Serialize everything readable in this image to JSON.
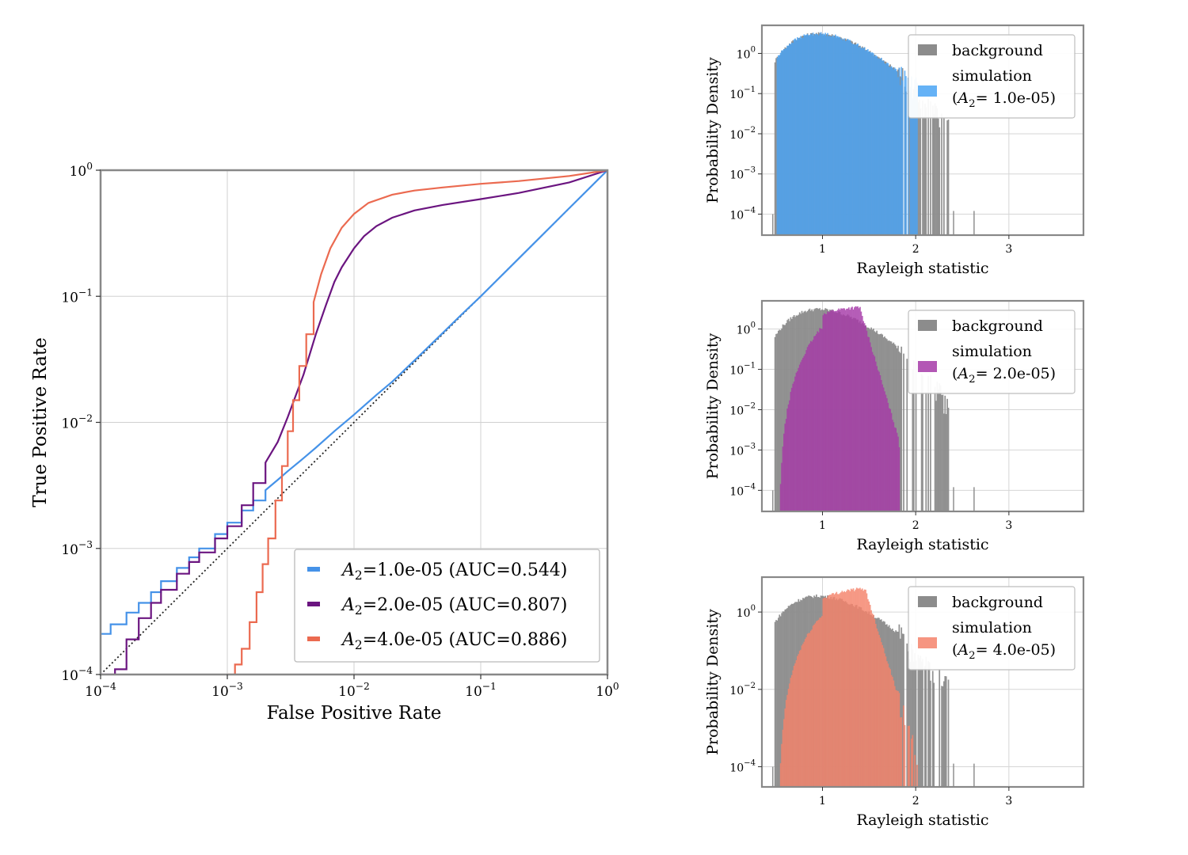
{
  "chart_data": [
    {
      "type": "line",
      "title": "",
      "xlabel": "False Positive Rate",
      "ylabel": "True Positive Rate",
      "xscale": "log",
      "yscale": "log",
      "xlim": [
        0.0001,
        1
      ],
      "ylim": [
        0.0001,
        1
      ],
      "grid": true,
      "legend_position": "lower-right",
      "x_ticks": [
        {
          "base": "10",
          "exp": "−4"
        },
        {
          "base": "10",
          "exp": "−3"
        },
        {
          "base": "10",
          "exp": "−2"
        },
        {
          "base": "10",
          "exp": "−1"
        },
        {
          "base": "10",
          "exp": "0"
        }
      ],
      "y_ticks": [
        {
          "base": "10",
          "exp": "−4"
        },
        {
          "base": "10",
          "exp": "−3"
        },
        {
          "base": "10",
          "exp": "−2"
        },
        {
          "base": "10",
          "exp": "−1"
        },
        {
          "base": "10",
          "exp": "0"
        }
      ],
      "reference_line": {
        "name": "chance",
        "style": "dotted",
        "color": "#222222"
      },
      "series": [
        {
          "name": "A2=1.0e-05 (AUC=0.544)",
          "legend_sym": "A",
          "legend_sub": "2",
          "legend_rest": "=1.0e-05 (AUC=0.544)",
          "color": "#4592e8",
          "x": [
            0.0001,
            0.00012,
            0.00016,
            0.0002,
            0.00025,
            0.0003,
            0.0004,
            0.0005,
            0.0006,
            0.0008,
            0.001,
            0.0013,
            0.0016,
            0.002,
            0.0025,
            0.003,
            0.004,
            0.005,
            0.007,
            0.01,
            0.015,
            0.02,
            0.03,
            0.05,
            0.07,
            0.1,
            0.2,
            0.3,
            0.5,
            0.7,
            1.0
          ],
          "y": [
            0.00021,
            0.00025,
            0.00031,
            0.00037,
            0.00045,
            0.00055,
            0.0007,
            0.00085,
            0.001,
            0.0013,
            0.0016,
            0.002,
            0.0024,
            0.0029,
            0.0035,
            0.0041,
            0.0052,
            0.0063,
            0.0085,
            0.0115,
            0.0165,
            0.021,
            0.031,
            0.051,
            0.071,
            0.1,
            0.2,
            0.3,
            0.5,
            0.7,
            1.0
          ]
        },
        {
          "name": "A2=2.0e-05 (AUC=0.807)",
          "legend_sym": "A",
          "legend_sub": "2",
          "legend_rest": "=2.0e-05 (AUC=0.807)",
          "color": "#6b1580",
          "x": [
            0.0001,
            0.00013,
            0.00016,
            0.0002,
            0.00025,
            0.0003,
            0.0004,
            0.0005,
            0.0006,
            0.0008,
            0.001,
            0.0013,
            0.0016,
            0.002,
            0.0025,
            0.003,
            0.004,
            0.005,
            0.006,
            0.007,
            0.008,
            0.01,
            0.012,
            0.015,
            0.02,
            0.03,
            0.05,
            0.1,
            0.2,
            0.5,
            1.0
          ],
          "y": [
            0.0001,
            0.00011,
            0.00019,
            0.00028,
            0.00037,
            0.00047,
            0.00063,
            0.00078,
            0.00093,
            0.0012,
            0.0015,
            0.0022,
            0.0033,
            0.0048,
            0.007,
            0.011,
            0.024,
            0.05,
            0.085,
            0.13,
            0.17,
            0.24,
            0.3,
            0.36,
            0.42,
            0.48,
            0.53,
            0.59,
            0.66,
            0.8,
            1.0
          ]
        },
        {
          "name": "A2=4.0e-05 (AUC=0.886)",
          "legend_sym": "A",
          "legend_sub": "2",
          "legend_rest": "=4.0e-05 (AUC=0.886)",
          "color": "#eb6a50",
          "x": [
            0.001,
            0.00115,
            0.0013,
            0.0015,
            0.0017,
            0.0019,
            0.0021,
            0.0024,
            0.0027,
            0.003,
            0.0033,
            0.0037,
            0.0042,
            0.0048,
            0.0055,
            0.0065,
            0.008,
            0.01,
            0.013,
            0.02,
            0.03,
            0.05,
            0.1,
            0.2,
            0.5,
            1.0
          ],
          "y": [
            0.0001,
            0.00012,
            0.00016,
            0.00026,
            0.00045,
            0.00075,
            0.0012,
            0.0024,
            0.0045,
            0.0085,
            0.015,
            0.028,
            0.05,
            0.09,
            0.15,
            0.24,
            0.35,
            0.45,
            0.55,
            0.64,
            0.69,
            0.73,
            0.78,
            0.82,
            0.9,
            1.0
          ]
        }
      ]
    },
    {
      "type": "bar",
      "subtype": "histogram",
      "xlabel": "Rayleigh statistic",
      "ylabel": "Probability Density",
      "yscale": "log",
      "xlim": [
        0.35,
        3.8
      ],
      "ylim": [
        3e-05,
        5
      ],
      "grid": true,
      "legend_position": "top-right",
      "x_ticks": [
        "1",
        "2",
        "3"
      ],
      "y_ticks": [
        {
          "base": "10",
          "exp": "0"
        },
        {
          "base": "10",
          "exp": "−1"
        },
        {
          "base": "10",
          "exp": "−2"
        },
        {
          "base": "10",
          "exp": "−3"
        },
        {
          "base": "10",
          "exp": "−4"
        }
      ],
      "legend": {
        "background": "background",
        "simulation": "simulation",
        "param_sym": "A",
        "param_sub": "2",
        "param_rest": "= 1.0e-05)"
      },
      "series": [
        {
          "name": "background",
          "color": "#8c8c8c",
          "mode": 0.95,
          "peak": 3.1,
          "k": 8.5,
          "tail_end": 2.35
        },
        {
          "name": "simulation",
          "color": "#4aa4f5",
          "mode": 0.95,
          "peak": 3.1,
          "k": 8.5,
          "tail_end": 2.02
        }
      ]
    },
    {
      "type": "bar",
      "subtype": "histogram",
      "xlabel": "Rayleigh statistic",
      "ylabel": "Probability Density",
      "yscale": "log",
      "xlim": [
        0.35,
        3.8
      ],
      "ylim": [
        3e-05,
        5
      ],
      "grid": true,
      "legend_position": "top-right",
      "x_ticks": [
        "1",
        "2",
        "3"
      ],
      "y_ticks": [
        {
          "base": "10",
          "exp": "0"
        },
        {
          "base": "10",
          "exp": "−1"
        },
        {
          "base": "10",
          "exp": "−2"
        },
        {
          "base": "10",
          "exp": "−3"
        },
        {
          "base": "10",
          "exp": "−4"
        }
      ],
      "legend": {
        "background": "background",
        "simulation": "simulation",
        "param_sym": "A",
        "param_sub": "2",
        "param_rest": "= 2.0e-05)"
      },
      "series": [
        {
          "name": "background",
          "color": "#8c8c8c",
          "mode": 0.95,
          "peak": 3.1,
          "k": 8.5,
          "tail_end": 2.35
        },
        {
          "name": "simulation",
          "color": "#a63aa8",
          "mode": 1.4,
          "peak": 3.0,
          "k": 10.0,
          "tail_end": 1.82,
          "plateau": 1.0
        }
      ]
    },
    {
      "type": "bar",
      "subtype": "histogram",
      "xlabel": "Rayleigh statistic",
      "ylabel": "Probability Density",
      "yscale": "log",
      "xlim": [
        0.35,
        3.8
      ],
      "ylim": [
        3e-05,
        8
      ],
      "grid": true,
      "legend_position": "top-right",
      "x_ticks": [
        "1",
        "2",
        "3"
      ],
      "y_ticks": [
        {
          "base": "10",
          "exp": "0"
        },
        {
          "base": "10",
          "exp": "−2"
        },
        {
          "base": "10",
          "exp": "−4"
        }
      ],
      "legend": {
        "background": "background",
        "simulation": "simulation",
        "param_sym": "A",
        "param_sub": "2",
        "param_rest": "= 4.0e-05)"
      },
      "series": [
        {
          "name": "background",
          "color": "#8c8c8c",
          "mode": 0.95,
          "peak": 2.6,
          "k": 8.5,
          "tail_end": 2.35
        },
        {
          "name": "simulation",
          "color": "#f5836b",
          "mode": 1.45,
          "peak": 4.0,
          "k": 12.0,
          "tail_end": 2.02,
          "plateau": 0.75
        }
      ]
    }
  ]
}
